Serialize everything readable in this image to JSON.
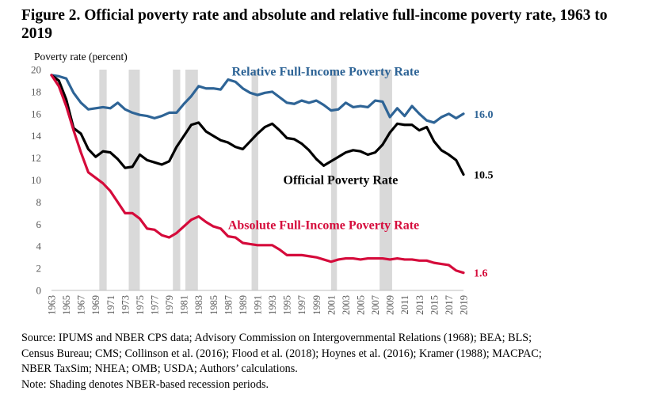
{
  "figure": {
    "title": "Figure 2. Official poverty rate and absolute and relative full-income poverty rate, 1963 to 2019",
    "source": "Source: IPUMS and NBER CPS data; Advisory Commission on Intergovernmental Relations (1968); BEA; BLS; Census Bureau; CMS; Collinson et al. (2016); Flood et al. (2018); Hoynes et al. (2016); Kramer (1988); MACPAC; NBER TaxSim; NHEA; OMB; USDA; Authors’ calculations.",
    "source_lines": [
      "Source: IPUMS and NBER CPS data; Advisory Commission on Intergovernmental Relations (1968); BEA; BLS;",
      "Census Bureau; CMS; Collinson et al. (2016); Flood et al. (2018); Hoynes et al. (2016); Kramer (1988); MACPAC;",
      "NBER TaxSim; NHEA; OMB; USDA; Authors’ calculations."
    ],
    "note": "Note: Shading denotes NBER-based recession periods."
  },
  "chart_data": {
    "type": "line",
    "ylabel": "Poverty rate (percent)",
    "ylim": [
      0,
      20
    ],
    "yticks": [
      0,
      2,
      4,
      6,
      8,
      10,
      12,
      14,
      16,
      18,
      20
    ],
    "xlim": [
      1963,
      2019
    ],
    "xtick_labels": [
      "1963",
      "1965",
      "1967",
      "1969",
      "1971",
      "1973",
      "1975",
      "1977",
      "1979",
      "1981",
      "1983",
      "1985",
      "1987",
      "1989",
      "1991",
      "1993",
      "1995",
      "1997",
      "1999",
      "2001",
      "2003",
      "2005",
      "2007",
      "2009",
      "2011",
      "2013",
      "2015",
      "2017",
      "2019"
    ],
    "grid": false,
    "recessions": [
      [
        1969.5,
        1970.5
      ],
      [
        1973.5,
        1975
      ],
      [
        1979.5,
        1980.5
      ],
      [
        1981.2,
        1982.9
      ],
      [
        1990.2,
        1991.1
      ],
      [
        2001,
        2001.8
      ],
      [
        2007.6,
        2009.3
      ]
    ],
    "x": [
      1963,
      1964,
      1965,
      1966,
      1967,
      1968,
      1969,
      1970,
      1971,
      1972,
      1973,
      1974,
      1975,
      1976,
      1977,
      1978,
      1979,
      1980,
      1981,
      1982,
      1983,
      1984,
      1985,
      1986,
      1987,
      1988,
      1989,
      1990,
      1991,
      1992,
      1993,
      1994,
      1995,
      1996,
      1997,
      1998,
      1999,
      2000,
      2001,
      2002,
      2003,
      2004,
      2005,
      2006,
      2007,
      2008,
      2009,
      2010,
      2011,
      2012,
      2013,
      2014,
      2015,
      2016,
      2017,
      2018,
      2019
    ],
    "series": [
      {
        "name": "Relative Full-Income Poverty Rate",
        "color": "#2e6496",
        "end_label": "16.0",
        "values": [
          19.5,
          19.4,
          19.2,
          17.9,
          17.0,
          16.4,
          16.5,
          16.6,
          16.5,
          17.0,
          16.4,
          16.1,
          15.9,
          15.8,
          15.6,
          15.8,
          16.1,
          16.1,
          16.9,
          17.6,
          18.5,
          18.3,
          18.3,
          18.2,
          19.1,
          18.9,
          18.3,
          17.9,
          17.7,
          17.9,
          18.0,
          17.5,
          17.0,
          16.9,
          17.2,
          17.0,
          17.2,
          16.8,
          16.3,
          16.4,
          17.0,
          16.6,
          16.7,
          16.6,
          17.2,
          17.1,
          15.7,
          16.5,
          15.8,
          16.7,
          16.0,
          15.4,
          15.2,
          15.7,
          16.0,
          15.6,
          16.0
        ]
      },
      {
        "name": "Official Poverty Rate",
        "color": "#000000",
        "end_label": "10.5",
        "values": [
          19.5,
          19.0,
          17.3,
          14.7,
          14.2,
          12.8,
          12.1,
          12.6,
          12.5,
          11.9,
          11.1,
          11.2,
          12.3,
          11.8,
          11.6,
          11.4,
          11.7,
          13.0,
          14.0,
          15.0,
          15.2,
          14.4,
          14.0,
          13.6,
          13.4,
          13.0,
          12.8,
          13.5,
          14.2,
          14.8,
          15.1,
          14.5,
          13.8,
          13.7,
          13.3,
          12.7,
          11.9,
          11.3,
          11.7,
          12.1,
          12.5,
          12.7,
          12.6,
          12.3,
          12.5,
          13.2,
          14.3,
          15.1,
          15.0,
          15.0,
          14.5,
          14.8,
          13.5,
          12.7,
          12.3,
          11.8,
          10.5
        ]
      },
      {
        "name": "Absolute Full-Income Poverty Rate",
        "color": "#d50b3b",
        "end_label": "1.6",
        "values": [
          19.5,
          18.5,
          16.7,
          14.5,
          12.5,
          10.7,
          10.2,
          9.7,
          9.0,
          8.0,
          7.0,
          7.0,
          6.5,
          5.6,
          5.5,
          5.0,
          4.8,
          5.2,
          5.8,
          6.4,
          6.7,
          6.2,
          5.8,
          5.6,
          4.9,
          4.8,
          4.3,
          4.2,
          4.1,
          4.1,
          4.1,
          3.7,
          3.2,
          3.2,
          3.2,
          3.1,
          3.0,
          2.8,
          2.6,
          2.8,
          2.9,
          2.9,
          2.8,
          2.9,
          2.9,
          2.9,
          2.8,
          2.9,
          2.8,
          2.8,
          2.7,
          2.7,
          2.5,
          2.4,
          2.3,
          1.8,
          1.6
        ]
      }
    ]
  }
}
